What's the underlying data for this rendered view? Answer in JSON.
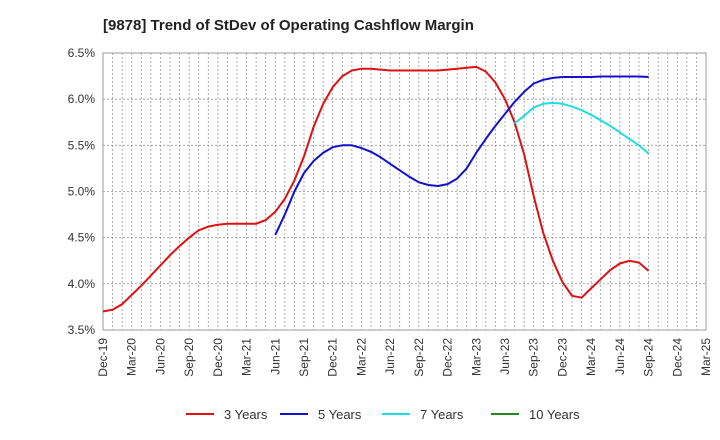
{
  "chart_data": {
    "type": "line",
    "title": "[9878]  Trend of StDev of Operating Cashflow Margin",
    "xlabel": "",
    "ylabel": "",
    "ylim": [
      3.5,
      6.5
    ],
    "yticks": [
      3.5,
      4.0,
      4.5,
      5.0,
      5.5,
      6.0,
      6.5
    ],
    "ytick_labels": [
      "3.5%",
      "4.0%",
      "4.5%",
      "5.0%",
      "5.5%",
      "6.0%",
      "6.5%"
    ],
    "x_categories": [
      "Dec-19",
      "Mar-20",
      "Jun-20",
      "Sep-20",
      "Dec-20",
      "Mar-21",
      "Jun-21",
      "Sep-21",
      "Dec-21",
      "Mar-22",
      "Jun-22",
      "Sep-22",
      "Dec-22",
      "Mar-23",
      "Jun-23",
      "Sep-23",
      "Dec-23",
      "Mar-24",
      "Jun-24",
      "Sep-24",
      "Dec-24",
      "Mar-25"
    ],
    "grid": true,
    "legend_position": "bottom",
    "series": [
      {
        "name": "3 Years",
        "color": "#dd1111",
        "x": [
          0,
          0.333,
          0.667,
          1,
          1.333,
          1.667,
          2,
          2.333,
          2.667,
          3,
          3.333,
          3.667,
          4,
          4.333,
          4.667,
          5,
          5.333,
          5.667,
          6,
          6.333,
          6.667,
          7,
          7.333,
          7.667,
          8,
          8.333,
          8.667,
          9,
          9.333,
          9.667,
          10,
          10.333,
          10.667,
          11,
          11.333,
          11.667,
          12,
          12.333,
          12.667,
          13,
          13.333,
          13.667,
          14,
          14.333,
          14.667,
          15,
          15.333,
          15.667,
          16,
          16.333,
          16.667,
          17,
          17.333,
          17.667,
          18,
          18.333,
          18.667,
          19
        ],
        "values": [
          3.7,
          3.72,
          3.78,
          3.88,
          3.98,
          4.09,
          4.2,
          4.31,
          4.41,
          4.5,
          4.58,
          4.62,
          4.64,
          4.65,
          4.65,
          4.65,
          4.65,
          4.69,
          4.78,
          4.92,
          5.12,
          5.38,
          5.7,
          5.95,
          6.13,
          6.25,
          6.31,
          6.33,
          6.33,
          6.32,
          6.31,
          6.31,
          6.31,
          6.31,
          6.31,
          6.31,
          6.32,
          6.33,
          6.34,
          6.35,
          6.3,
          6.18,
          6.0,
          5.75,
          5.4,
          4.95,
          4.55,
          4.25,
          4.02,
          3.87,
          3.85,
          3.95,
          4.05,
          4.15,
          4.22,
          4.25,
          4.23,
          4.14
        ]
      },
      {
        "name": "5 Years",
        "color": "#1111cc",
        "x": [
          6,
          6.333,
          6.667,
          7,
          7.333,
          7.667,
          8,
          8.333,
          8.667,
          9,
          9.333,
          9.667,
          10,
          10.333,
          10.667,
          11,
          11.333,
          11.667,
          12,
          12.333,
          12.667,
          13,
          13.333,
          13.667,
          14,
          14.333,
          14.667,
          15,
          15.333,
          15.667,
          16,
          16.333,
          16.667,
          17,
          17.333,
          17.667,
          18,
          18.333,
          18.667,
          19
        ],
        "values": [
          4.53,
          4.75,
          5.0,
          5.2,
          5.33,
          5.42,
          5.48,
          5.5,
          5.5,
          5.47,
          5.43,
          5.37,
          5.3,
          5.23,
          5.16,
          5.1,
          5.07,
          5.06,
          5.08,
          5.14,
          5.25,
          5.42,
          5.57,
          5.71,
          5.84,
          5.97,
          6.08,
          6.17,
          6.21,
          6.23,
          6.24,
          6.24,
          6.24,
          6.24,
          6.245,
          6.245,
          6.245,
          6.245,
          6.245,
          6.24
        ]
      },
      {
        "name": "7 Years",
        "color": "#22dddd",
        "x": [
          14.333,
          14.667,
          15,
          15.333,
          15.667,
          16,
          16.333,
          16.667,
          17,
          17.333,
          17.667,
          18,
          18.333,
          18.667,
          19
        ],
        "values": [
          5.74,
          5.82,
          5.91,
          5.95,
          5.96,
          5.95,
          5.92,
          5.88,
          5.83,
          5.77,
          5.71,
          5.64,
          5.57,
          5.5,
          5.41
        ]
      },
      {
        "name": "10 Years",
        "color": "#228822",
        "x": [],
        "values": []
      }
    ]
  }
}
